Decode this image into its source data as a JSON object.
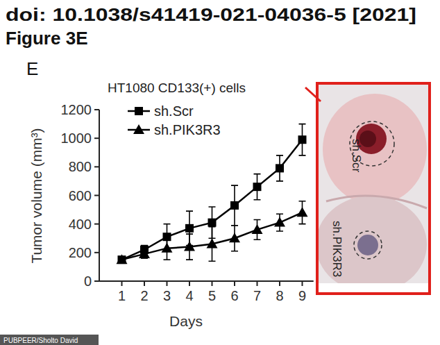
{
  "header": {
    "doi": "doi: 10.1038/s41419-021-04036-5 [2021]",
    "figure": "Figure 3E"
  },
  "panel_label": "E",
  "chart_data": {
    "type": "line",
    "title": "HT1080 CD133(+) cells",
    "x_label": "Days",
    "y_label": "Tumor volume (mm³)",
    "x": [
      1,
      2,
      3,
      4,
      5,
      6,
      7,
      8,
      9
    ],
    "series": [
      {
        "name": "sh.Scr",
        "color": "#000000",
        "marker": "square",
        "values": [
          150,
          220,
          310,
          370,
          410,
          530,
          660,
          790,
          990
        ],
        "errors": [
          20,
          30,
          90,
          120,
          110,
          140,
          90,
          90,
          110
        ]
      },
      {
        "name": "sh.PIK3R3",
        "color": "#000000",
        "marker": "triangle",
        "values": [
          150,
          190,
          230,
          240,
          260,
          300,
          360,
          410,
          480
        ],
        "errors": [
          20,
          30,
          80,
          90,
          120,
          90,
          70,
          60,
          80
        ]
      }
    ],
    "xlim": [
      0,
      9.5
    ],
    "ylim": [
      0,
      1200
    ],
    "xticks": [
      1,
      2,
      3,
      4,
      5,
      6,
      7,
      8,
      9
    ],
    "yticks": [
      0,
      200,
      400,
      600,
      800,
      1000,
      1200
    ],
    "grid": false,
    "legend": "upper left"
  },
  "image": {
    "labels": [
      "sh.Scr",
      "sh.PIK3R3"
    ],
    "color": "#e0201b"
  },
  "credit": "PUBPEER/Sholto David"
}
